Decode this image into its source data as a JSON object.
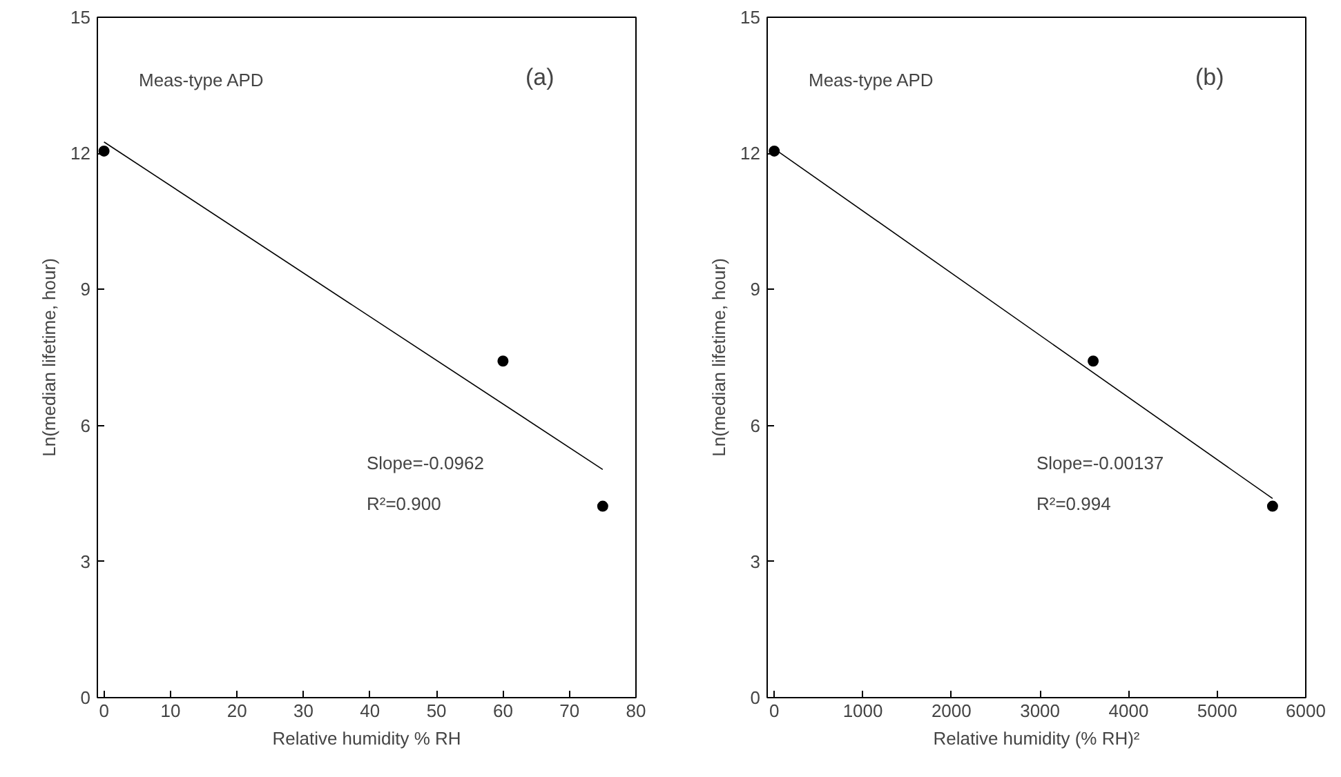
{
  "chart_data": [
    {
      "type": "scatter",
      "xlabel": "Relative humidity % RH",
      "ylabel": "Ln(median lifetime, hour)",
      "xlim": [
        -1,
        80
      ],
      "ylim": [
        0,
        15
      ],
      "xticks": [
        0,
        10,
        20,
        30,
        40,
        50,
        60,
        70,
        80
      ],
      "yticks": [
        0,
        3,
        6,
        9,
        12,
        15
      ],
      "grid": false,
      "annotations": [
        "Meas-type APD",
        "(a)",
        "Slope=-0.0962",
        "R²=0.900"
      ],
      "series": [
        {
          "color": "#000000",
          "marker": "circle",
          "x": [
            0,
            60,
            75
          ],
          "values": [
            12.05,
            7.42,
            4.22
          ]
        },
        {
          "type": "line",
          "color": "#000000",
          "x": [
            0,
            75
          ],
          "values": [
            12.25,
            5.03
          ]
        }
      ]
    },
    {
      "type": "scatter",
      "xlabel": "Relative humidity (% RH)²",
      "ylabel": "Ln(median lifetime, hour)",
      "xlim": [
        -80,
        6000
      ],
      "ylim": [
        0,
        15
      ],
      "xticks": [
        0,
        1000,
        2000,
        3000,
        4000,
        5000,
        6000
      ],
      "yticks": [
        0,
        3,
        6,
        9,
        12,
        15
      ],
      "grid": false,
      "annotations": [
        "Meas-type APD",
        "(b)",
        "Slope=-0.00137",
        "R²=0.994"
      ],
      "series": [
        {
          "color": "#000000",
          "marker": "circle",
          "x": [
            0,
            3600,
            5625
          ],
          "values": [
            12.05,
            7.42,
            4.22
          ]
        },
        {
          "type": "line",
          "color": "#000000",
          "x": [
            0,
            5625
          ],
          "values": [
            12.1,
            4.39
          ]
        }
      ]
    }
  ]
}
